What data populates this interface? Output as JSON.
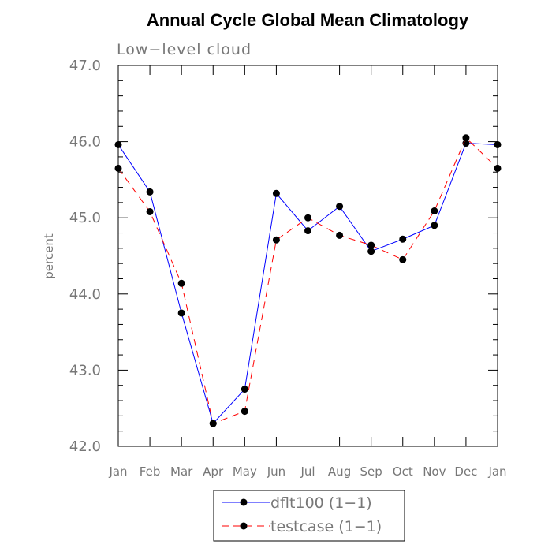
{
  "chart_data": {
    "type": "line",
    "title": "Annual Cycle Global Mean Climatology",
    "subtitle": "Low−level cloud",
    "ylabel": "percent",
    "xlabel": "",
    "ylim": [
      42.0,
      47.0
    ],
    "yticks": [
      "42.0",
      "43.0",
      "44.0",
      "45.0",
      "46.0",
      "47.0"
    ],
    "categories": [
      "Jan",
      "Feb",
      "Mar",
      "Apr",
      "May",
      "Jun",
      "Jul",
      "Aug",
      "Sep",
      "Oct",
      "Nov",
      "Dec",
      "Jan"
    ],
    "series": [
      {
        "name": "dflt100 (1−1)",
        "color": "#0000ff",
        "dash": "solid",
        "values": [
          45.96,
          45.34,
          43.75,
          42.3,
          42.75,
          45.32,
          44.83,
          45.15,
          44.56,
          44.72,
          44.9,
          45.98,
          45.96
        ]
      },
      {
        "name": "testcase (1−1)",
        "color": "#ff0000",
        "dash": "dashed",
        "values": [
          45.65,
          45.08,
          44.14,
          42.3,
          42.46,
          44.71,
          45.0,
          44.77,
          44.64,
          44.45,
          45.09,
          46.05,
          45.65
        ]
      }
    ],
    "grid": false,
    "legend_position": "bottom-center"
  }
}
